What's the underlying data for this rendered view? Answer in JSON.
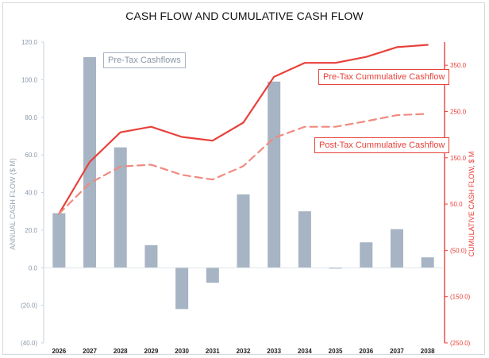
{
  "chart_data": {
    "type": "bar+line",
    "title": "CASH FLOW AND CUMULATIVE CASH FLOW",
    "categories": [
      "2026",
      "2027",
      "2028",
      "2029",
      "2030",
      "2031",
      "2032",
      "2033",
      "2034",
      "2035",
      "2036",
      "2037",
      "2038"
    ],
    "ylabel_left": "ANNUAL CASH FLOW ($ M)",
    "ylabel_right": "CUMULATIVE CASH FLOW, $ M",
    "ylim_left": [
      -40,
      120
    ],
    "ylim_right": [
      -250,
      400
    ],
    "yticks_left": [
      "120.0",
      "100.0",
      "80.0",
      "60.0",
      "40.0",
      "20.0",
      "0.0",
      "(20.0)",
      "(40.0)"
    ],
    "yticks_right": [
      "350.0",
      "250.0",
      "150.0",
      "50.0",
      "(50.0)",
      "(150.0)",
      "(250.0)"
    ],
    "series": [
      {
        "name": "Pre-Tax Cashflows",
        "type": "bar",
        "axis": "left",
        "color": "#a6b4c4",
        "values": [
          29,
          112,
          64,
          12,
          -22,
          -8,
          39,
          99,
          30,
          -0.5,
          13.5,
          20.5,
          5.5
        ]
      },
      {
        "name": "Pre-Tax Cummulative Cashflow",
        "type": "line",
        "axis": "right",
        "color": "#e8413a",
        "dash": false,
        "values": [
          29,
          141,
          205,
          217,
          195,
          187,
          226,
          325,
          355,
          355,
          368,
          389,
          394
        ]
      },
      {
        "name": "Post-Tax Cummulative Cashflow",
        "type": "line",
        "axis": "right",
        "color": "#f08a80",
        "dash": true,
        "values": [
          29,
          95,
          131,
          135,
          113,
          103,
          132,
          193,
          217,
          217,
          229,
          242,
          245
        ]
      }
    ],
    "grid": false,
    "legend": "inline labels"
  }
}
